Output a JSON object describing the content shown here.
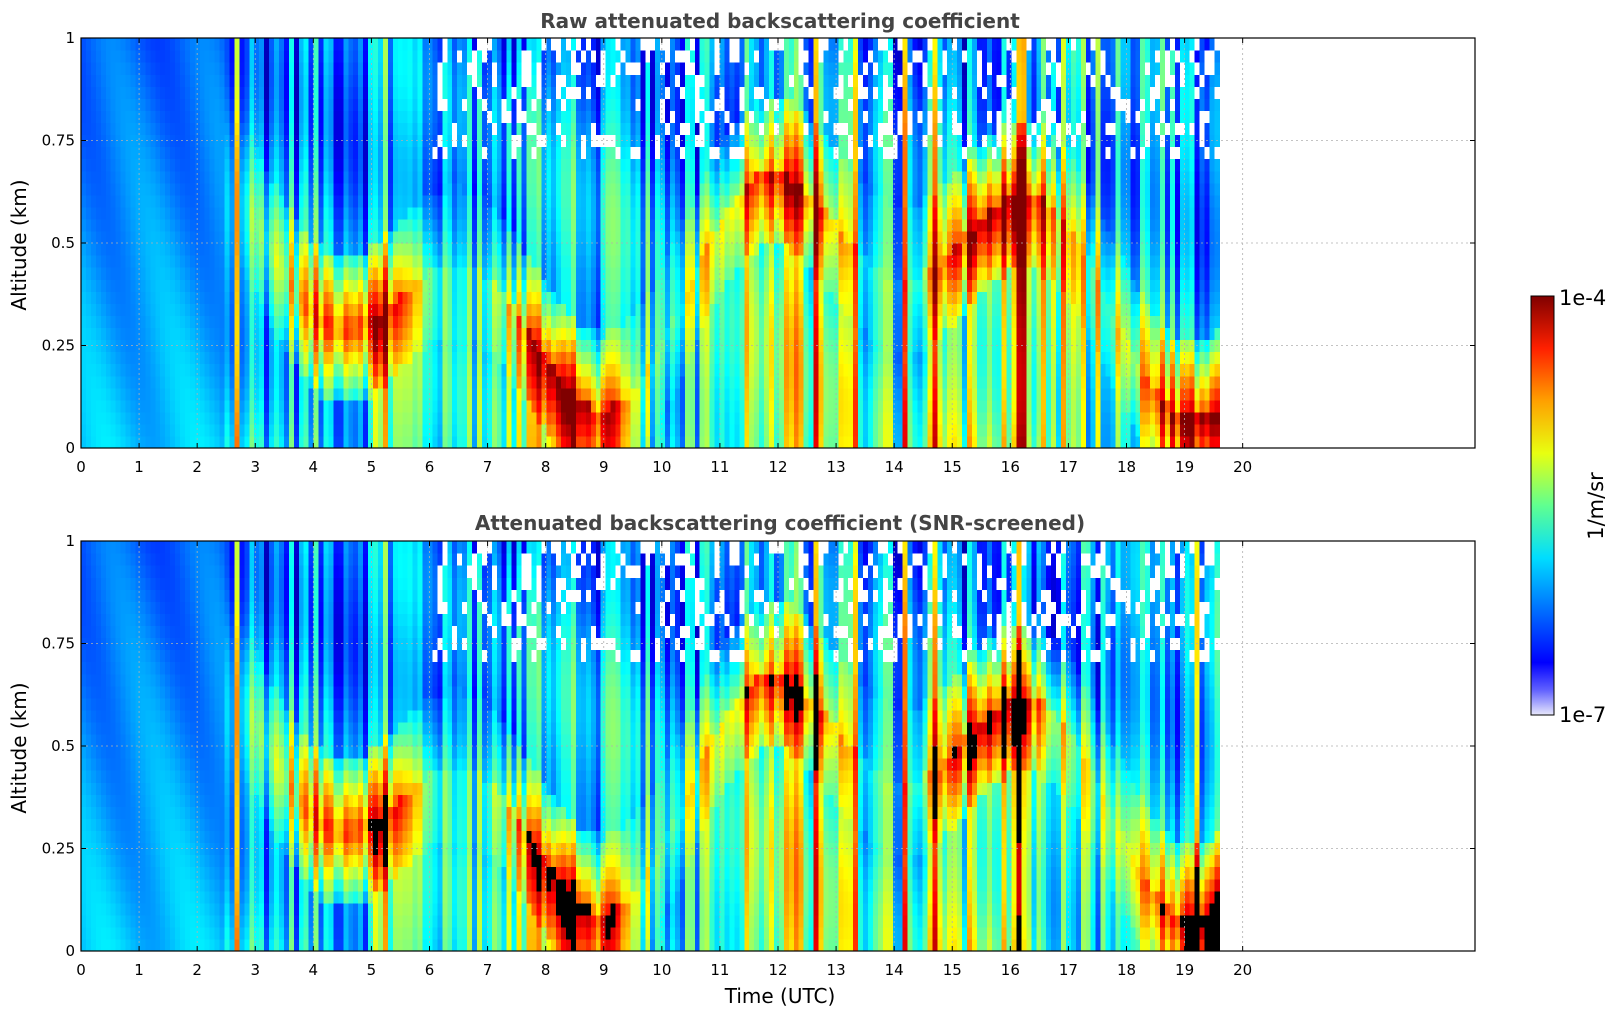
{
  "chart_data": [
    {
      "type": "heatmap",
      "title": "Raw attenuated backscattering coefficient",
      "xlabel": "",
      "ylabel": "Altitude (km)",
      "xlim": [
        0,
        24
      ],
      "ylim": [
        0,
        1
      ],
      "data_extent_hours": [
        0,
        19.6
      ],
      "xticks": [
        0,
        1,
        2,
        3,
        4,
        5,
        6,
        7,
        8,
        9,
        10,
        11,
        12,
        13,
        14,
        15,
        16,
        17,
        18,
        19,
        20
      ],
      "xtick_labels": [
        "0",
        "1",
        "2",
        "3",
        "4",
        "5",
        "6",
        "7",
        "8",
        "9",
        "10",
        "11",
        "12",
        "13",
        "14",
        "15",
        "16",
        "17",
        "18",
        "19",
        "20"
      ],
      "yticks": [
        0,
        0.25,
        0.5,
        0.75,
        1
      ],
      "ytick_labels": [
        "0",
        "0.25",
        "0.5",
        "0.75",
        "1"
      ],
      "grid": true,
      "screened": false
    },
    {
      "type": "heatmap",
      "title": "Attenuated backscattering coefficient (SNR-screened)",
      "xlabel": "Time (UTC)",
      "ylabel": "Altitude (km)",
      "xlim": [
        0,
        24
      ],
      "ylim": [
        0,
        1
      ],
      "data_extent_hours": [
        0,
        19.6
      ],
      "xticks": [
        0,
        1,
        2,
        3,
        4,
        5,
        6,
        7,
        8,
        9,
        10,
        11,
        12,
        13,
        14,
        15,
        16,
        17,
        18,
        19,
        20
      ],
      "xtick_labels": [
        "0",
        "1",
        "2",
        "3",
        "4",
        "5",
        "6",
        "7",
        "8",
        "9",
        "10",
        "11",
        "12",
        "13",
        "14",
        "15",
        "16",
        "17",
        "18",
        "19",
        "20"
      ],
      "yticks": [
        0,
        0.25,
        0.5,
        0.75,
        1
      ],
      "ytick_labels": [
        "0",
        "0.25",
        "0.5",
        "0.75",
        "1"
      ],
      "grid": true,
      "screened": true
    }
  ],
  "colorbar": {
    "label": "1/m/sr",
    "max_label": "1e-4",
    "min_label": "1e-7",
    "scale": "log",
    "range": [
      1e-07,
      0.0001
    ],
    "colormap": "jet"
  },
  "colors": {
    "title": "#444444",
    "grid": "#b0b0b0",
    "masked": "#000000"
  }
}
